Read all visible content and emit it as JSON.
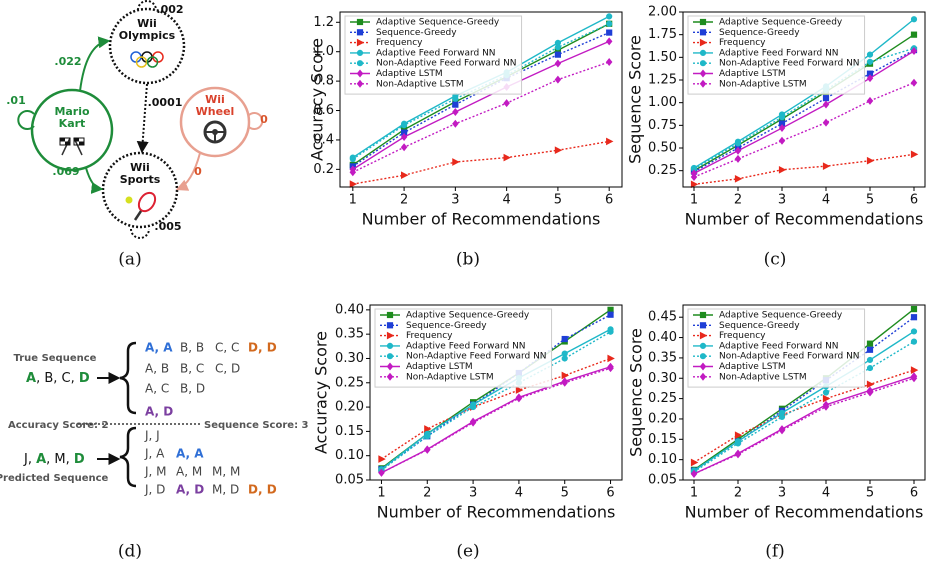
{
  "chart_data": [
    {
      "type": "line",
      "caption": "(b)",
      "xlabel": "Number of Recommendations",
      "ylabel": "Accuracy Score",
      "x": [
        1,
        2,
        3,
        4,
        5,
        6
      ],
      "xlim": [
        0.75,
        6.25
      ],
      "xticks": [
        1,
        2,
        3,
        4,
        5,
        6
      ],
      "ylim": [
        0.08,
        1.27
      ],
      "yticks": [
        0.2,
        0.4,
        0.6,
        0.8,
        {
          "value": 1,
          "label": "1.0"
        },
        1.2
      ],
      "legend": "upper left",
      "grid": false,
      "series": [
        {
          "name": "Adaptive Sequence-Greedy",
          "color": "#1e8c1e",
          "linestyle": "solid",
          "marker": "square",
          "values": [
            0.23,
            0.47,
            0.66,
            0.83,
            1.01,
            1.19
          ]
        },
        {
          "name": "Sequence-Greedy",
          "color": "#1f3fd6",
          "linestyle": "dotted",
          "marker": "square",
          "values": [
            0.22,
            0.45,
            0.64,
            0.82,
            0.98,
            1.13
          ]
        },
        {
          "name": "Frequency",
          "color": "#e8291c",
          "linestyle": "dotted",
          "marker": "triangle",
          "values": [
            0.1,
            0.16,
            0.25,
            0.28,
            0.33,
            0.39
          ]
        },
        {
          "name": "Adaptive Feed Forward NN",
          "color": "#1fb8c8",
          "linestyle": "solid",
          "marker": "circle",
          "values": [
            0.28,
            0.51,
            0.7,
            0.86,
            1.06,
            1.24
          ]
        },
        {
          "name": "Non-Adaptive Feed Forward NN",
          "color": "#1fb8c8",
          "linestyle": "dotted",
          "marker": "circle",
          "values": [
            0.27,
            0.5,
            0.68,
            0.84,
            1.03,
            1.19
          ]
        },
        {
          "name": "Adaptive LSTM",
          "color": "#c21bc2",
          "linestyle": "solid",
          "marker": "diamond",
          "values": [
            0.2,
            0.42,
            0.59,
            0.76,
            0.92,
            1.07
          ]
        },
        {
          "name": "Non-Adaptive LSTM",
          "color": "#c21bc2",
          "linestyle": "dotted",
          "marker": "diamond",
          "values": [
            0.18,
            0.35,
            0.51,
            0.65,
            0.81,
            0.93
          ]
        }
      ]
    },
    {
      "type": "line",
      "caption": "(c)",
      "xlabel": "Number of Recommendations",
      "ylabel": "Sequence Score",
      "x": [
        1,
        2,
        3,
        4,
        5,
        6
      ],
      "xlim": [
        0.75,
        6.25
      ],
      "xticks": [
        1,
        2,
        3,
        4,
        5,
        6
      ],
      "ylim": [
        0.07,
        2.0
      ],
      "yticks": [
        0.25,
        {
          "value": 0.5,
          "label": "0.50"
        },
        0.75,
        {
          "value": 1,
          "label": "1.00"
        },
        1.25,
        {
          "value": 1.5,
          "label": "1.50"
        },
        1.75,
        {
          "value": 2,
          "label": "2.00"
        }
      ],
      "legend": "upper left",
      "grid": false,
      "series": [
        {
          "name": "Adaptive Sequence-Greedy",
          "color": "#1e8c1e",
          "linestyle": "solid",
          "marker": "square",
          "values": [
            0.25,
            0.53,
            0.82,
            1.12,
            1.43,
            1.75
          ]
        },
        {
          "name": "Sequence-Greedy",
          "color": "#1f3fd6",
          "linestyle": "dotted",
          "marker": "square",
          "values": [
            0.24,
            0.5,
            0.77,
            1.05,
            1.32,
            1.58
          ]
        },
        {
          "name": "Frequency",
          "color": "#e8291c",
          "linestyle": "dotted",
          "marker": "triangle",
          "values": [
            0.1,
            0.16,
            0.26,
            0.3,
            0.36,
            0.43
          ]
        },
        {
          "name": "Adaptive Feed Forward NN",
          "color": "#1fb8c8",
          "linestyle": "solid",
          "marker": "circle",
          "values": [
            0.28,
            0.57,
            0.87,
            1.18,
            1.53,
            1.92
          ]
        },
        {
          "name": "Non-Adaptive Feed Forward NN",
          "color": "#1fb8c8",
          "linestyle": "dotted",
          "marker": "circle",
          "values": [
            0.27,
            0.55,
            0.84,
            1.14,
            1.45,
            1.6
          ]
        },
        {
          "name": "Adaptive LSTM",
          "color": "#c21bc2",
          "linestyle": "solid",
          "marker": "diamond",
          "values": [
            0.22,
            0.47,
            0.72,
            0.98,
            1.27,
            1.57
          ]
        },
        {
          "name": "Non-Adaptive LSTM",
          "color": "#c21bc2",
          "linestyle": "dotted",
          "marker": "diamond",
          "values": [
            0.18,
            0.38,
            0.58,
            0.78,
            1.02,
            1.22
          ]
        }
      ]
    },
    {
      "type": "line",
      "caption": "(e)",
      "xlabel": "Number of Recommendations",
      "ylabel": "Accuracy Score",
      "x": [
        1,
        2,
        3,
        4,
        5,
        6
      ],
      "xlim": [
        0.75,
        6.25
      ],
      "xticks": [
        1,
        2,
        3,
        4,
        5,
        6
      ],
      "ylim": [
        0.05,
        0.41
      ],
      "yticks": [
        0.05,
        {
          "value": 0.1,
          "label": "0.10"
        },
        0.15,
        {
          "value": 0.2,
          "label": "0.20"
        },
        0.25,
        {
          "value": 0.3,
          "label": "0.30"
        },
        0.35,
        {
          "value": 0.4,
          "label": "0.40"
        }
      ],
      "legend": "upper left",
      "grid": false,
      "series": [
        {
          "name": "Adaptive Sequence-Greedy",
          "color": "#1e8c1e",
          "linestyle": "solid",
          "marker": "square",
          "values": [
            0.074,
            0.145,
            0.21,
            0.27,
            0.335,
            0.4
          ]
        },
        {
          "name": "Sequence-Greedy",
          "color": "#1f3fd6",
          "linestyle": "dotted",
          "marker": "square",
          "values": [
            0.072,
            0.14,
            0.205,
            0.27,
            0.34,
            0.39
          ]
        },
        {
          "name": "Frequency",
          "color": "#e8291c",
          "linestyle": "dotted",
          "marker": "triangle",
          "values": [
            0.093,
            0.155,
            0.2,
            0.235,
            0.265,
            0.3
          ]
        },
        {
          "name": "Adaptive Feed Forward NN",
          "color": "#1fb8c8",
          "linestyle": "solid",
          "marker": "circle",
          "values": [
            0.072,
            0.145,
            0.205,
            0.26,
            0.31,
            0.36
          ]
        },
        {
          "name": "Non-Adaptive Feed Forward NN",
          "color": "#1fb8c8",
          "linestyle": "dotted",
          "marker": "circle",
          "values": [
            0.07,
            0.14,
            0.2,
            0.25,
            0.3,
            0.355
          ]
        },
        {
          "name": "Adaptive LSTM",
          "color": "#c21bc2",
          "linestyle": "solid",
          "marker": "diamond",
          "values": [
            0.065,
            0.113,
            0.17,
            0.22,
            0.253,
            0.283
          ]
        },
        {
          "name": "Non-Adaptive LSTM",
          "color": "#c21bc2",
          "linestyle": "dotted",
          "marker": "diamond",
          "values": [
            0.065,
            0.112,
            0.168,
            0.218,
            0.25,
            0.28
          ]
        }
      ]
    },
    {
      "type": "line",
      "caption": "(f)",
      "xlabel": "Number of Recommendations",
      "ylabel": "Sequence Score",
      "x": [
        1,
        2,
        3,
        4,
        5,
        6
      ],
      "xlim": [
        0.75,
        6.25
      ],
      "xticks": [
        1,
        2,
        3,
        4,
        5,
        6
      ],
      "ylim": [
        0.05,
        0.48
      ],
      "yticks": [
        0.05,
        {
          "value": 0.1,
          "label": "0.10"
        },
        0.15,
        {
          "value": 0.2,
          "label": "0.20"
        },
        0.25,
        {
          "value": 0.3,
          "label": "0.30"
        },
        0.35,
        {
          "value": 0.4,
          "label": "0.40"
        },
        0.45
      ],
      "legend": "upper left",
      "grid": false,
      "series": [
        {
          "name": "Adaptive Sequence-Greedy",
          "color": "#1e8c1e",
          "linestyle": "solid",
          "marker": "square",
          "values": [
            0.075,
            0.15,
            0.225,
            0.3,
            0.385,
            0.47
          ]
        },
        {
          "name": "Sequence-Greedy",
          "color": "#1f3fd6",
          "linestyle": "dotted",
          "marker": "square",
          "values": [
            0.073,
            0.145,
            0.22,
            0.295,
            0.37,
            0.45
          ]
        },
        {
          "name": "Frequency",
          "color": "#e8291c",
          "linestyle": "dotted",
          "marker": "triangle",
          "values": [
            0.093,
            0.16,
            0.21,
            0.25,
            0.285,
            0.32
          ]
        },
        {
          "name": "Adaptive Feed Forward NN",
          "color": "#1fb8c8",
          "linestyle": "solid",
          "marker": "circle",
          "values": [
            0.073,
            0.145,
            0.215,
            0.28,
            0.345,
            0.415
          ]
        },
        {
          "name": "Non-Adaptive Feed Forward NN",
          "color": "#1fb8c8",
          "linestyle": "dotted",
          "marker": "circle",
          "values": [
            0.07,
            0.14,
            0.205,
            0.265,
            0.325,
            0.39
          ]
        },
        {
          "name": "Adaptive LSTM",
          "color": "#c21bc2",
          "linestyle": "solid",
          "marker": "diamond",
          "values": [
            0.065,
            0.115,
            0.175,
            0.235,
            0.27,
            0.305
          ]
        },
        {
          "name": "Non-Adaptive LSTM",
          "color": "#c21bc2",
          "linestyle": "dotted",
          "marker": "diamond",
          "values": [
            0.065,
            0.113,
            0.172,
            0.23,
            0.265,
            0.3
          ]
        }
      ]
    }
  ],
  "diagram_a": {
    "caption": "(a)",
    "nodes": [
      {
        "label": [
          "Wii",
          "Olympics"
        ],
        "color": "#111111",
        "border": "dotted"
      },
      {
        "label": [
          "Mario",
          "Kart"
        ],
        "color": "#1e8c3a",
        "border": "solid"
      },
      {
        "label": [
          "Wii",
          "Wheel"
        ],
        "color": "#e8a090",
        "border": "solid"
      },
      {
        "label": [
          "Wii",
          "Sports"
        ],
        "color": "#111111",
        "border": "dotted"
      }
    ],
    "edges": [
      {
        "label": ".002",
        "color": "#111111"
      },
      {
        "label": ".022",
        "color": "#1e8c3a"
      },
      {
        "label": ".01",
        "color": "#1e8c3a"
      },
      {
        "label": ".0001",
        "color": "#111111"
      },
      {
        "label": "0",
        "color": "#d9542b"
      },
      {
        "label": ".069",
        "color": "#1e8c3a"
      },
      {
        "label": "0",
        "color": "#d9542b"
      },
      {
        "label": ".005",
        "color": "#111111"
      }
    ]
  },
  "diagram_d": {
    "caption": "(d)",
    "true_label": "True Sequence",
    "true_sequence": [
      {
        "text": "A",
        "color": "#1e8c3a"
      },
      {
        "text": ", B, C, "
      },
      {
        "text": "D",
        "color": "#1e8c3a"
      }
    ],
    "true_pairs": [
      [
        {
          "text": "A, A",
          "color": "#2f6fd6"
        },
        {
          "text": "B, B"
        },
        {
          "text": "C, C"
        },
        {
          "text": "D, D",
          "color": "#d2691e"
        }
      ],
      [
        {
          "text": "A, B"
        },
        {
          "text": "B, C"
        },
        {
          "text": "C, D"
        }
      ],
      [
        {
          "text": "A, C"
        },
        {
          "text": "B, D"
        }
      ],
      [
        {
          "text": "A, D",
          "color": "#7b3fa0"
        }
      ]
    ],
    "accuracy": "Accuracy Score: 2",
    "sequence_score": "Sequence Score: 3",
    "predicted_sequence": [
      {
        "text": "J, "
      },
      {
        "text": "A",
        "color": "#1e8c3a"
      },
      {
        "text": ", M, "
      },
      {
        "text": "D",
        "color": "#1e8c3a"
      }
    ],
    "predicted_label": "Predicted Sequence",
    "predicted_pairs": [
      [
        {
          "text": "J, J"
        }
      ],
      [
        {
          "text": "J, A"
        },
        {
          "text": "A, A",
          "color": "#2f6fd6"
        }
      ],
      [
        {
          "text": "J, M"
        },
        {
          "text": "A, M"
        },
        {
          "text": "M, M"
        }
      ],
      [
        {
          "text": "J, D"
        },
        {
          "text": "A, D",
          "color": "#7b3fa0"
        },
        {
          "text": "M, D"
        },
        {
          "text": "D, D",
          "color": "#d2691e"
        }
      ]
    ]
  }
}
